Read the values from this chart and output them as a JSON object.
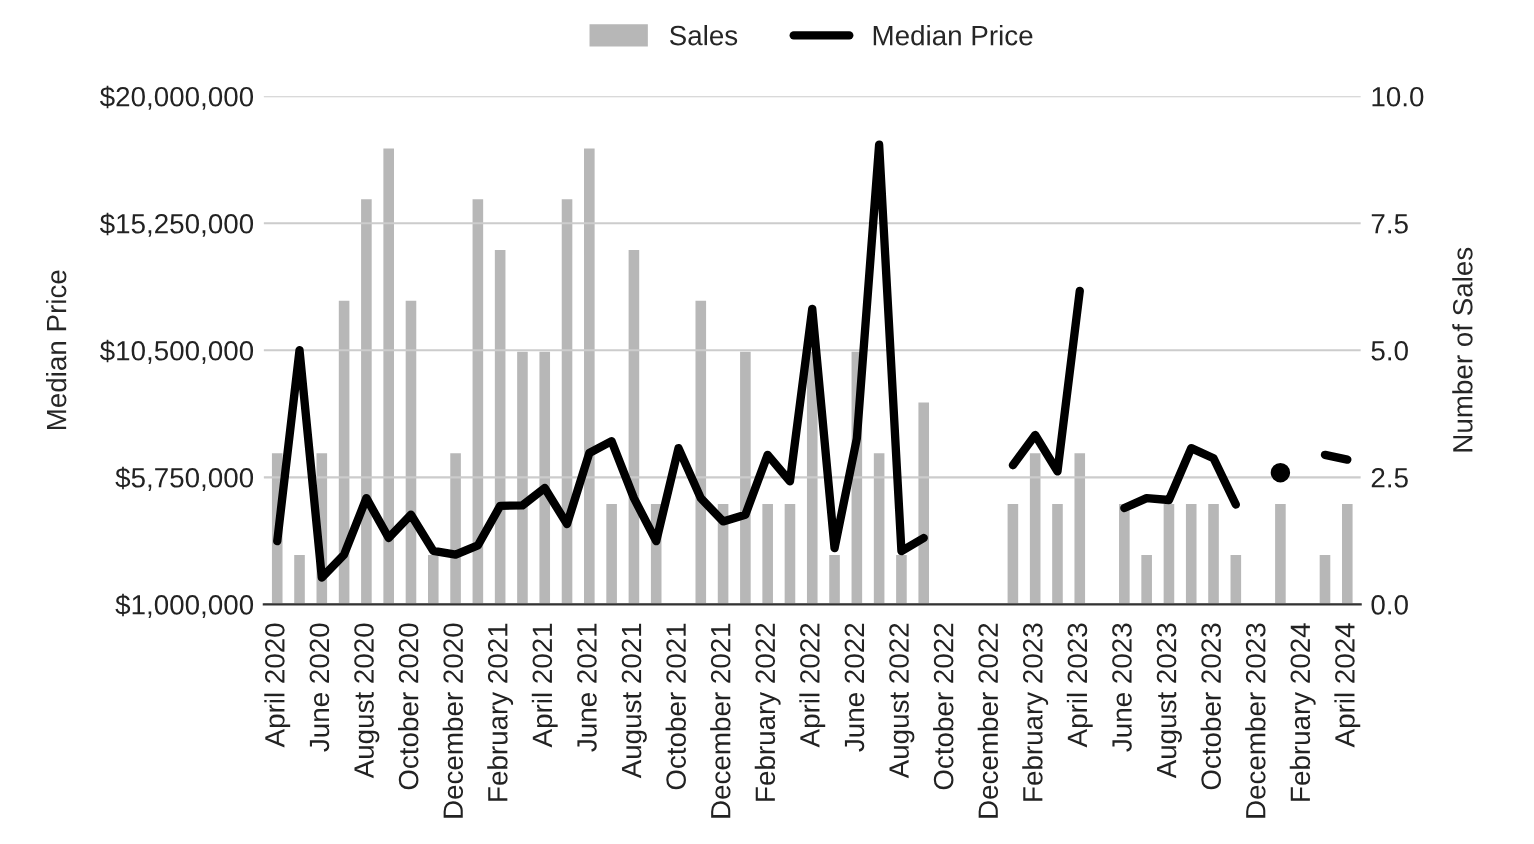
{
  "chart_data": {
    "type": "bar",
    "categories": [
      "April 2020",
      null,
      "June 2020",
      null,
      "August 2020",
      null,
      "October 2020",
      null,
      "December 2020",
      null,
      "February 2021",
      null,
      "April 2021",
      null,
      "June 2021",
      null,
      "August 2021",
      null,
      "October 2021",
      null,
      "December 2021",
      null,
      "February 2022",
      null,
      "April 2022",
      null,
      "June 2022",
      null,
      "August 2022",
      null,
      "October 2022",
      null,
      "December 2022",
      null,
      "February 2023",
      null,
      "April 2023",
      null,
      "June 2023",
      null,
      "August 2023",
      null,
      "October 2023",
      null,
      "December 2023",
      null,
      "February 2024",
      null,
      "April 2024"
    ],
    "series": [
      {
        "name": "Sales",
        "axis": "y2",
        "color": "#b7b7b7",
        "values": [
          3,
          1,
          3,
          6,
          8,
          9,
          6,
          1,
          3,
          8,
          7,
          5,
          5,
          8,
          9,
          2,
          7,
          2,
          null,
          6,
          2,
          5,
          2,
          2,
          5,
          1,
          5,
          3,
          1,
          4,
          null,
          null,
          null,
          2,
          3,
          2,
          3,
          null,
          2,
          1,
          2,
          2,
          2,
          1,
          null,
          2,
          null,
          1,
          2
        ]
      },
      {
        "name": "Median Price",
        "type": "line",
        "color": "#000000",
        "values": [
          3360000,
          10500000,
          2000000,
          2860000,
          4970000,
          3480000,
          4350000,
          3000000,
          2860000,
          3200000,
          4680000,
          4700000,
          5350000,
          4000000,
          6660000,
          7100000,
          4970000,
          3360000,
          6840000,
          4970000,
          4100000,
          4350000,
          6590000,
          5600000,
          12050000,
          3100000,
          7200000,
          18190000,
          2990000,
          3480000,
          null,
          null,
          null,
          6200000,
          7330000,
          5970000,
          12720000,
          null,
          4600000,
          4970000,
          4900000,
          6840000,
          6460000,
          4730000,
          null,
          5920000,
          null,
          6590000,
          6410000
        ]
      }
    ],
    "ylabel": "Median Price",
    "y2label": "Number of Sales",
    "ylim": [
      1000000,
      20000000
    ],
    "yticks": [
      {
        "value": 1000000,
        "label": "$1,000,000"
      },
      {
        "value": 5750000,
        "label": "$5,750,000"
      },
      {
        "value": 10500000,
        "label": "$10,500,000"
      },
      {
        "value": 15250000,
        "label": "$15,250,000"
      },
      {
        "value": 20000000,
        "label": "$20,000,000"
      }
    ],
    "y2lim": [
      0,
      10
    ],
    "y2ticks": [
      {
        "value": 0,
        "label": "0.0"
      },
      {
        "value": 2.5,
        "label": "2.5"
      },
      {
        "value": 5,
        "label": "5.0"
      },
      {
        "value": 7.5,
        "label": "7.5"
      },
      {
        "value": 10,
        "label": "10.0"
      }
    ],
    "grid": "y",
    "legend": "top",
    "line_style": "solid"
  }
}
